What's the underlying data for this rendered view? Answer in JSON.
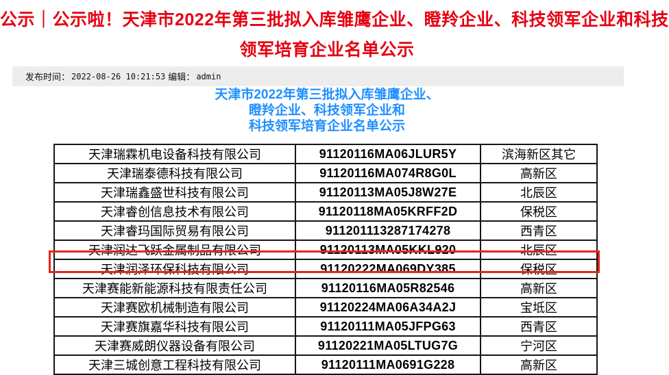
{
  "article": {
    "title_lines": [
      "公示｜公示啦！天津市2022年第三批拟入库雏鹰企业、瞪羚企业、科技领军企业和科技",
      "领军培育企业名单公示"
    ],
    "title_color": "#e60012",
    "meta": {
      "publish_label": "发布时间：",
      "publish_time": "2022-08-26 10:21:53",
      "editor_label": "编辑：",
      "editor": "admin",
      "bar_color": "#ededed"
    },
    "subtitle_lines": [
      "天津市2022年第三批拟入库雏鹰企业、",
      "瞪羚企业、科技领军企业和",
      "科技领军培育企业名单公示"
    ],
    "subtitle_color": "#1f8fff"
  },
  "table": {
    "highlight": {
      "row_index": 6,
      "color": "#e8231d"
    },
    "rows": [
      {
        "company": "天津瑞霖机电设备科技有限公司",
        "code": "91120116MA06JLUR5Y",
        "district": "滨海新区其它"
      },
      {
        "company": "天津瑞泰德科技有限公司",
        "code": "91120116MA074R8G0L",
        "district": "高新区"
      },
      {
        "company": "天津瑞鑫盛世科技有限公司",
        "code": "91120113MA05J8W27E",
        "district": "北辰区"
      },
      {
        "company": "天津睿创信息技术有限公司",
        "code": "91120118MA05KRFF2D",
        "district": "保税区"
      },
      {
        "company": "天津睿玛国际贸易有限公司",
        "code": "911201113287174278",
        "district": "西青区"
      },
      {
        "company": "天津润达飞跃金属制品有限公司",
        "code": "91120113MA05KKL920",
        "district": "北辰区"
      },
      {
        "company": "天津润泽环保科技有限公司",
        "code": "91120222MA069DY385",
        "district": "保税区"
      },
      {
        "company": "天津赛能新能源科技有限责任公司",
        "code": "91120116MA05R82546",
        "district": "高新区"
      },
      {
        "company": "天津赛欧机械制造有限公司",
        "code": "91120224MA06A34A2J",
        "district": "宝坻区"
      },
      {
        "company": "天津赛旗嘉华科技有限公司",
        "code": "91120111MA05JFPG63",
        "district": "西青区"
      },
      {
        "company": "天津赛威朗仪器设备有限公司",
        "code": "91120221MA05LTUG7G",
        "district": "宁河区"
      },
      {
        "company": "天津三城创意工程科技有限公司",
        "code": "91120111MA0691G228",
        "district": "高新区"
      }
    ]
  }
}
